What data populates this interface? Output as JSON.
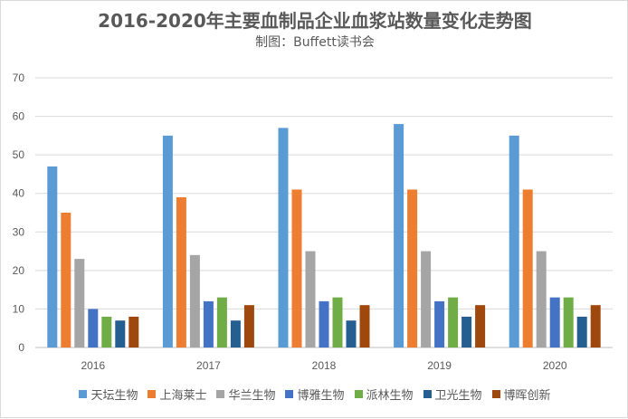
{
  "chart_data": {
    "type": "bar",
    "title": "2016-2020年主要血制品企业血浆站数量变化走势图",
    "subtitle": "制图：Buffett读书会",
    "categories": [
      "2016",
      "2017",
      "2018",
      "2019",
      "2020"
    ],
    "ylim": [
      0,
      70
    ],
    "yticks": [
      0,
      10,
      20,
      30,
      40,
      50,
      60,
      70
    ],
    "grid": true,
    "legend_position": "bottom",
    "series": [
      {
        "name": "天坛生物",
        "color": "#5B9BD5",
        "values": [
          47,
          55,
          57,
          58,
          55
        ]
      },
      {
        "name": "上海莱士",
        "color": "#ED7D31",
        "values": [
          35,
          39,
          41,
          41,
          41
        ]
      },
      {
        "name": "华兰生物",
        "color": "#A5A5A5",
        "values": [
          23,
          24,
          25,
          25,
          25
        ]
      },
      {
        "name": "博雅生物",
        "color": "#4472C4",
        "values": [
          10,
          12,
          12,
          12,
          13
        ]
      },
      {
        "name": "派林生物",
        "color": "#70AD47",
        "values": [
          8,
          13,
          13,
          13,
          13
        ]
      },
      {
        "name": "卫光生物",
        "color": "#255E91",
        "values": [
          7,
          7,
          7,
          8,
          8
        ]
      },
      {
        "name": "博晖创新",
        "color": "#9E480E",
        "values": [
          8,
          11,
          11,
          11,
          11
        ]
      }
    ]
  }
}
